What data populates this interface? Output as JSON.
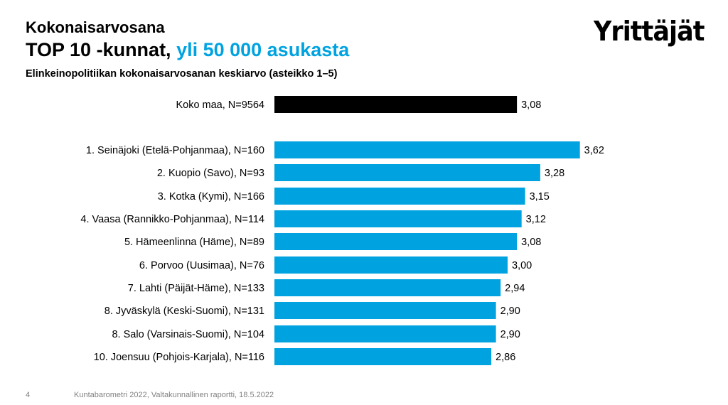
{
  "header": {
    "title_line1": "Kokonaisarvosana",
    "title_line2_part1": "TOP 10 -kunnat, ",
    "title_line2_part2": "yli 50 000 asukasta",
    "subtitle": "Elinkeinopolitiikan kokonaisarvosanan keskiarvo (asteikko 1–5)"
  },
  "logo": {
    "text": "Yrittäjät"
  },
  "footer": {
    "page_number": "4",
    "source": "Kuntabarometri 2022, Valtakunnallinen raportti, 18.5.2022"
  },
  "chart_data": {
    "type": "bar",
    "orientation": "horizontal",
    "categories": [
      "Koko maa, N=9564",
      "1. Seinäjoki (Etelä-Pohjanmaa), N=160",
      "2. Kuopio (Savo), N=93",
      "3. Kotka (Kymi), N=166",
      "4. Vaasa (Rannikko-Pohjanmaa), N=114",
      "5. Hämeenlinna (Häme), N=89",
      "6. Porvoo (Uusimaa), N=76",
      "7. Lahti (Päijät-Häme), N=133",
      "8. Jyväskylä (Keski-Suomi), N=131",
      "8. Salo (Varsinais-Suomi), N=104",
      "10. Joensuu (Pohjois-Karjala), N=116"
    ],
    "values": [
      3.08,
      3.62,
      3.28,
      3.15,
      3.12,
      3.08,
      3.0,
      2.94,
      2.9,
      2.9,
      2.86
    ],
    "value_labels": [
      "3,08",
      "3,62",
      "3,28",
      "3,15",
      "3,12",
      "3,08",
      "3,00",
      "2,94",
      "2,90",
      "2,90",
      "2,86"
    ],
    "bar_colors": [
      "#000000",
      "#00a3e0",
      "#00a3e0",
      "#00a3e0",
      "#00a3e0",
      "#00a3e0",
      "#00a3e0",
      "#00a3e0",
      "#00a3e0",
      "#00a3e0",
      "#00a3e0"
    ],
    "xlim": [
      1,
      5
    ],
    "grid": false,
    "legend": "none"
  }
}
